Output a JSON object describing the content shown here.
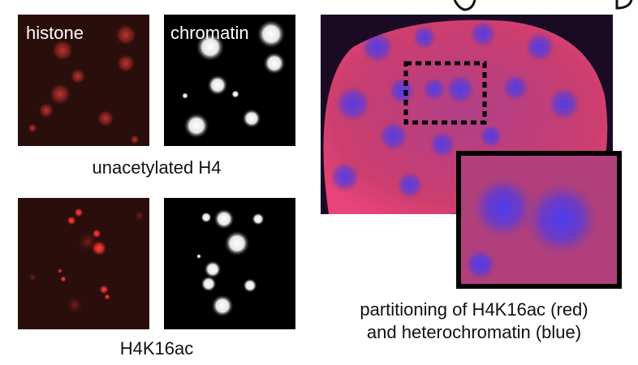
{
  "figure": {
    "panels": {
      "unacetylated_histone": {
        "label": "histone"
      },
      "unacetylated_chromatin": {
        "label": "chromatin"
      },
      "acetylated_histone": {
        "label": ""
      },
      "acetylated_chromatin": {
        "label": ""
      },
      "nucleus": {
        "label": ""
      }
    },
    "captions": {
      "row1": "unacetylated H4",
      "row2": "H4K16ac",
      "nucleus_line1": "partitioning of H4K16ac (red)",
      "nucleus_line2": "and heterochromatin (blue)"
    },
    "colors": {
      "histone_red": "#e8302a",
      "heterochromatin_blue": "#4a3cf0",
      "h4k16ac_red": "#e8437a",
      "background_dark": "#1a0808"
    }
  }
}
